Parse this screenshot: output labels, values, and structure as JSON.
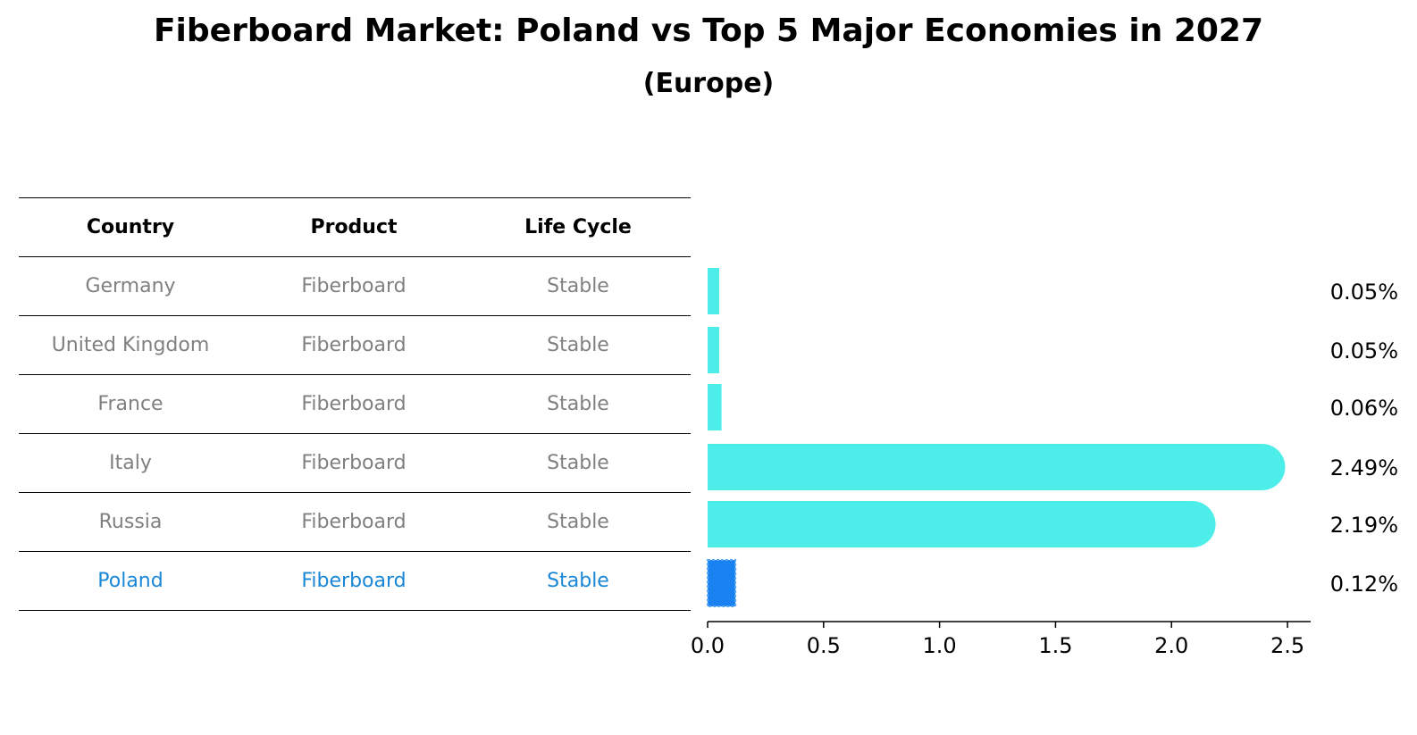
{
  "title": "Fiberboard Market: Poland vs Top 5 Major Economies in 2027",
  "subtitle": "(Europe)",
  "table": {
    "headers": [
      "Country",
      "Product",
      "Life Cycle"
    ],
    "rows": [
      {
        "country": "Germany",
        "product": "Fiberboard",
        "life_cycle": "Stable",
        "highlight": false
      },
      {
        "country": "United Kingdom",
        "product": "Fiberboard",
        "life_cycle": "Stable",
        "highlight": false
      },
      {
        "country": "France",
        "product": "Fiberboard",
        "life_cycle": "Stable",
        "highlight": false
      },
      {
        "country": "Italy",
        "product": "Fiberboard",
        "life_cycle": "Stable",
        "highlight": false
      },
      {
        "country": "Russia",
        "product": "Fiberboard",
        "life_cycle": "Stable",
        "highlight": false
      },
      {
        "country": "Poland",
        "product": "Fiberboard",
        "life_cycle": "Stable",
        "highlight": true
      }
    ]
  },
  "colors": {
    "bar": "#4deeea",
    "highlight_bar": "#1a82f0",
    "highlight_text": "#1a87d6",
    "muted_text": "#808080"
  },
  "chart_data": {
    "type": "bar",
    "orientation": "horizontal",
    "categories": [
      "Germany",
      "United Kingdom",
      "France",
      "Italy",
      "Russia",
      "Poland"
    ],
    "values": [
      0.05,
      0.05,
      0.06,
      2.49,
      2.19,
      0.12
    ],
    "value_labels": [
      "0.05%",
      "0.05%",
      "0.06%",
      "2.49%",
      "2.19%",
      "0.12%"
    ],
    "highlight": "Poland",
    "xlim": [
      0,
      2.6
    ],
    "xticks": [
      0.0,
      0.5,
      1.0,
      1.5,
      2.0,
      2.5
    ],
    "xtick_labels": [
      "0.0",
      "0.5",
      "1.0",
      "1.5",
      "2.0",
      "2.5"
    ],
    "title": "Fiberboard Market: Poland vs Top 5 Major Economies in 2027",
    "xlabel": "",
    "ylabel": "",
    "grid": false
  }
}
